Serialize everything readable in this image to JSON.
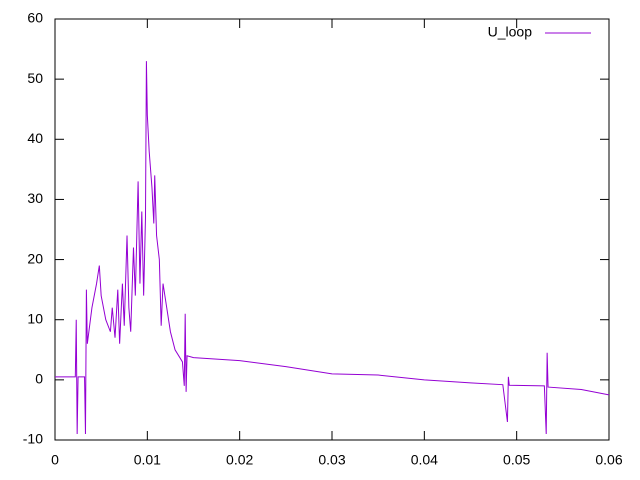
{
  "chart_data": {
    "type": "line",
    "x": [
      0,
      0.0022,
      0.0023,
      0.0024,
      0.0025,
      0.0032,
      0.0033,
      0.0034,
      0.0035,
      0.004,
      0.0045,
      0.0048,
      0.005,
      0.0055,
      0.006,
      0.0062,
      0.0065,
      0.0068,
      0.007,
      0.0073,
      0.0075,
      0.0078,
      0.008,
      0.0082,
      0.0085,
      0.0087,
      0.009,
      0.0092,
      0.0094,
      0.0096,
      0.0098,
      0.0099,
      0.01,
      0.0102,
      0.0105,
      0.0107,
      0.0108,
      0.011,
      0.0113,
      0.0115,
      0.0117,
      0.012,
      0.0125,
      0.013,
      0.0138,
      0.014,
      0.0141,
      0.0142,
      0.0143,
      0.015,
      0.02,
      0.025,
      0.03,
      0.035,
      0.04,
      0.045,
      0.0485,
      0.049,
      0.0491,
      0.0492,
      0.053,
      0.0532,
      0.0533,
      0.0534,
      0.057,
      0.06
    ],
    "series": [
      {
        "name": "U_loop",
        "color": "#9400d3",
        "values": [
          0.5,
          0.5,
          10,
          -9,
          0.5,
          0.5,
          -9,
          15,
          6,
          12,
          16,
          19,
          14,
          10,
          8,
          12,
          7,
          15,
          6,
          16,
          9,
          24,
          12,
          8,
          22,
          14,
          33,
          16,
          28,
          14,
          27,
          53,
          44,
          38,
          32,
          26,
          34,
          24,
          20,
          9,
          16,
          13,
          8,
          5,
          3,
          -1,
          11,
          -2,
          4,
          3.7,
          3.2,
          2.2,
          1,
          0.8,
          0,
          -0.5,
          -0.8,
          -7,
          0.5,
          -0.9,
          -1,
          -9,
          4.5,
          -1.2,
          -1.6,
          -2.5
        ]
      }
    ],
    "xlim": [
      0,
      0.06
    ],
    "xticks": [
      0,
      0.01,
      0.02,
      0.03,
      0.04,
      0.05,
      0.06
    ],
    "ylim": [
      -10,
      60
    ],
    "yticks": [
      -10,
      0,
      10,
      20,
      30,
      40,
      50,
      60
    ],
    "legend": "top-right"
  }
}
